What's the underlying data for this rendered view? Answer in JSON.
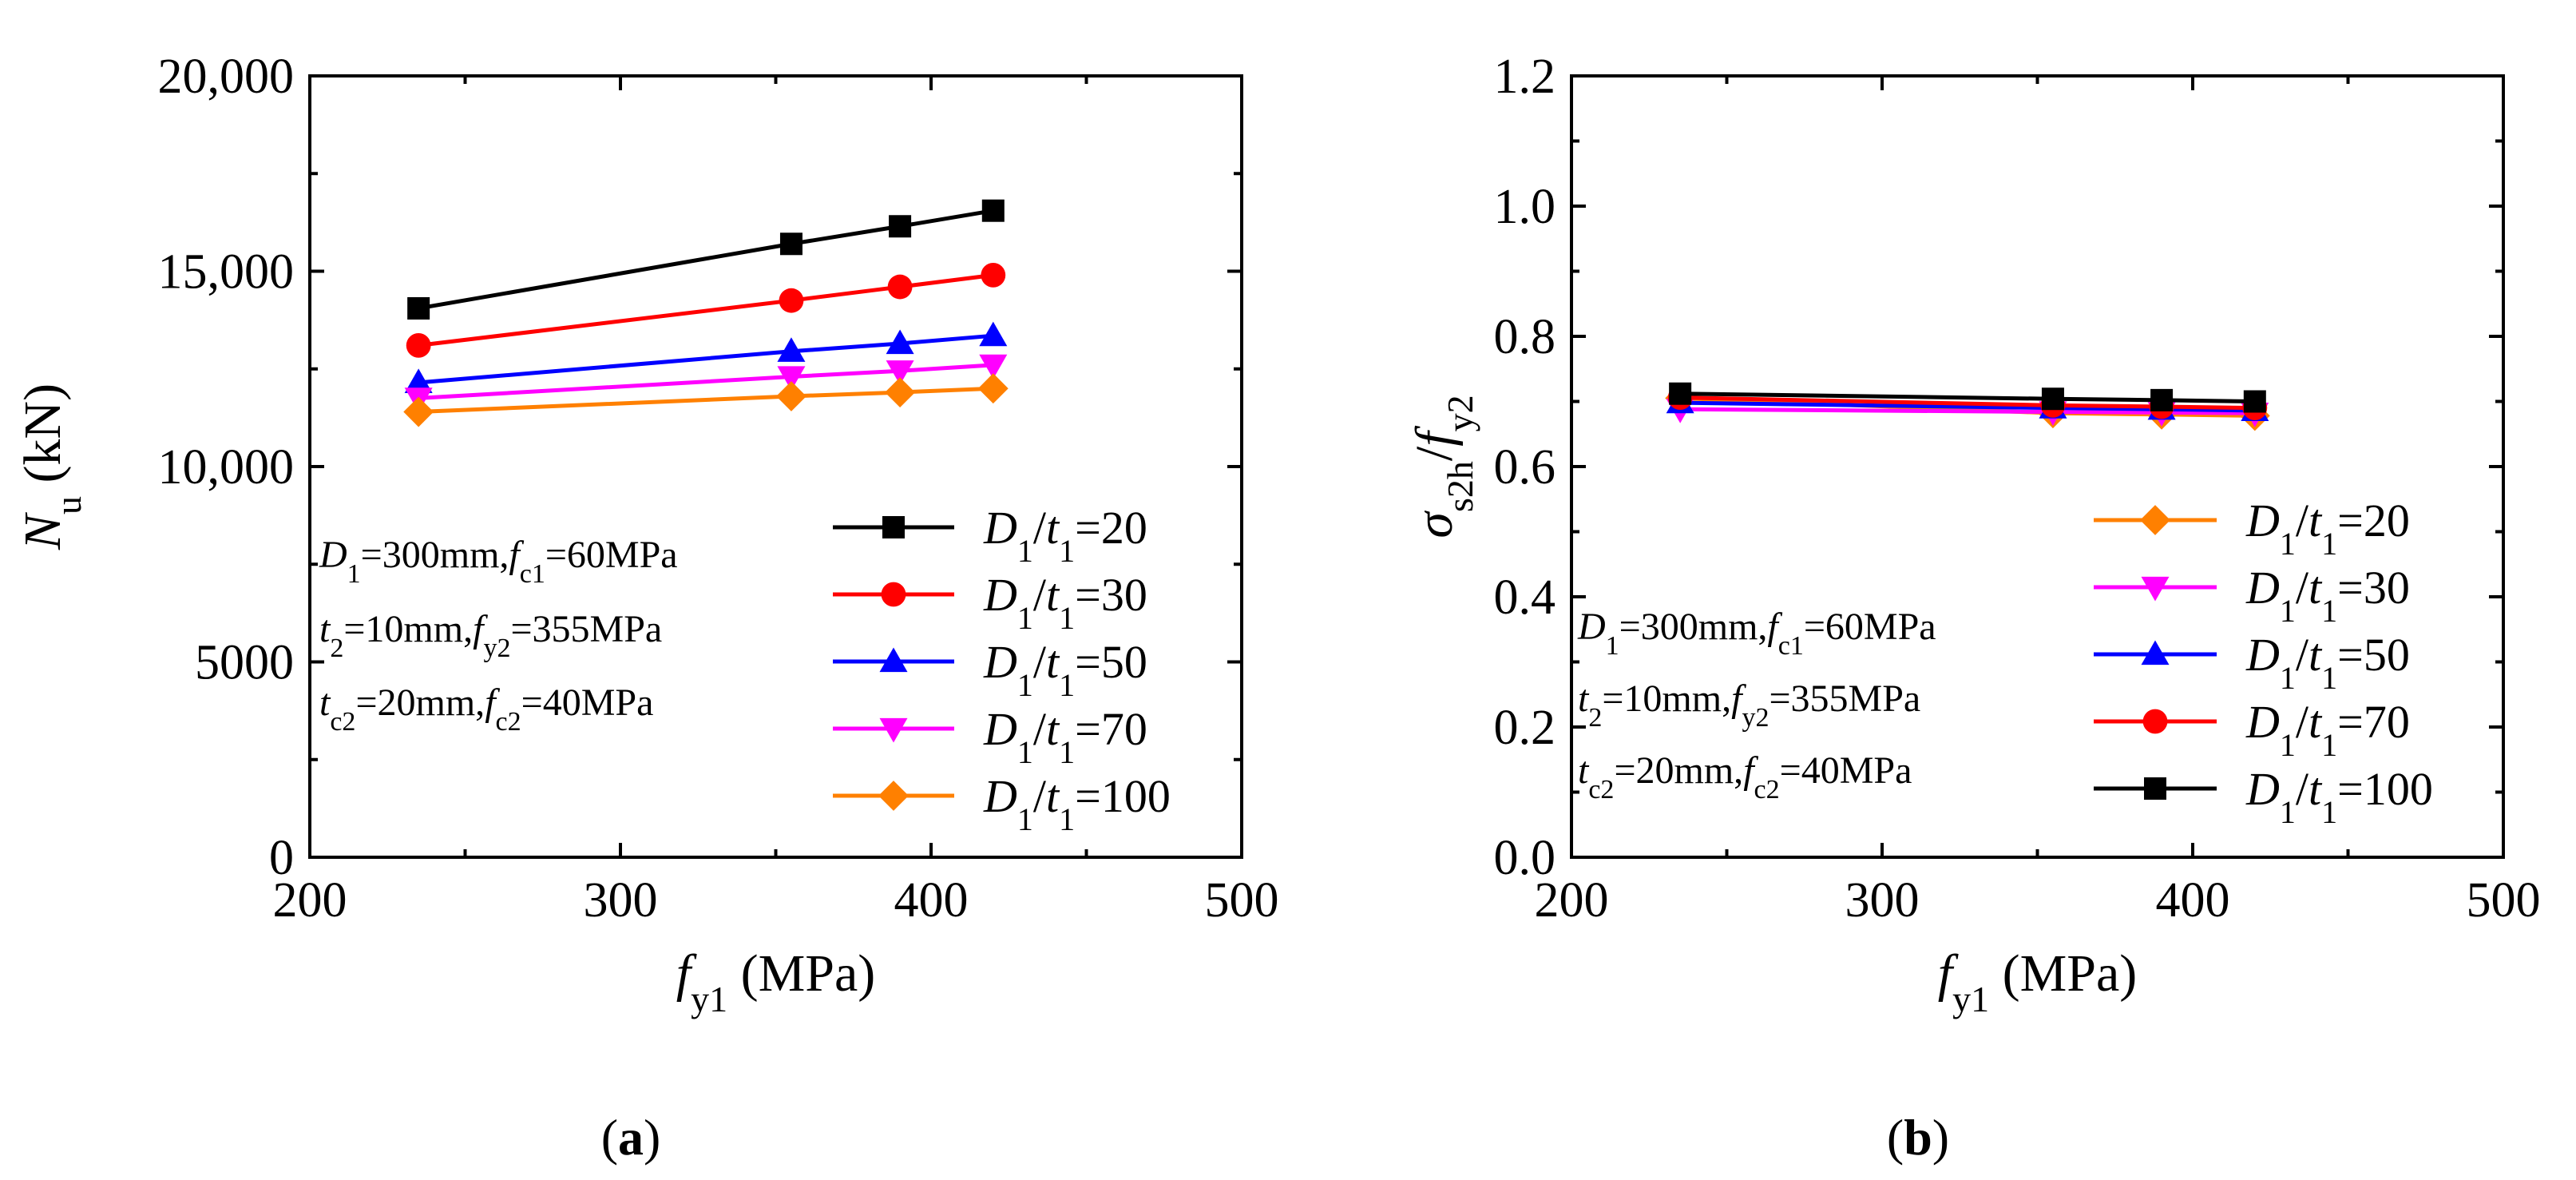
{
  "chart_data": [
    {
      "panel": "(a)",
      "panel_letter": "a",
      "type": "line",
      "x": [
        235,
        355,
        390,
        420
      ],
      "xlim": [
        200,
        500
      ],
      "ylim": [
        0,
        20000
      ],
      "xticks": [
        200,
        300,
        400,
        500
      ],
      "xtick_labels": [
        "200",
        "300",
        "400",
        "500"
      ],
      "yticks": [
        0,
        5000,
        10000,
        15000,
        20000
      ],
      "ytick_labels": [
        "0",
        "5000",
        "10,000",
        "15,000",
        "20,000"
      ],
      "xlabel": {
        "italic": "f",
        "sub": "y1",
        "unit": " (MPa)"
      },
      "ylabel": {
        "italic": "N",
        "sub": "u",
        "unit": " (kN)"
      },
      "legend_position": "lower-right",
      "annotation": [
        {
          "p1": "D",
          "s1": "1",
          "t1": "=300mm,",
          "p2": "f",
          "s2": "c1",
          "t2": "=60MPa"
        },
        {
          "p1": "t",
          "s1": "2",
          "t1": "=10mm,",
          "p2": "f",
          "s2": "y2",
          "t2": "=355MPa"
        },
        {
          "p1": "t",
          "s1": "c2",
          "t1": "=20mm,",
          "p2": "f",
          "s2": "c2",
          "t2": "=40MPa"
        }
      ],
      "series": [
        {
          "name": "D1/t1=20",
          "ratio": "=20",
          "marker": "square",
          "color": "#000000",
          "values": [
            14050,
            15700,
            16150,
            16550
          ]
        },
        {
          "name": "D1/t1=30",
          "ratio": "=30",
          "marker": "circle",
          "color": "#ff0000",
          "values": [
            13100,
            14250,
            14600,
            14900
          ]
        },
        {
          "name": "D1/t1=50",
          "ratio": "=50",
          "marker": "triangle-up",
          "color": "#0000ff",
          "values": [
            12150,
            12950,
            13150,
            13350
          ]
        },
        {
          "name": "D1/t1=70",
          "ratio": "=70",
          "marker": "triangle-down",
          "color": "#ff00ff",
          "values": [
            11750,
            12300,
            12450,
            12600
          ]
        },
        {
          "name": "D1/t1=100",
          "ratio": "=100",
          "marker": "diamond",
          "color": "#ff8000",
          "values": [
            11400,
            11800,
            11900,
            12000
          ]
        }
      ]
    },
    {
      "panel": "(b)",
      "panel_letter": "b",
      "type": "line",
      "x": [
        235,
        355,
        390,
        420
      ],
      "xlim": [
        200,
        500
      ],
      "ylim": [
        0,
        1.2
      ],
      "xticks": [
        200,
        300,
        400,
        500
      ],
      "xtick_labels": [
        "200",
        "300",
        "400",
        "500"
      ],
      "yticks": [
        0,
        0.2,
        0.4,
        0.6,
        0.8,
        1.0,
        1.2
      ],
      "ytick_labels": [
        "0.0",
        "0.2",
        "0.4",
        "0.6",
        "0.8",
        "1.0",
        "1.2"
      ],
      "xlabel": {
        "italic": "f",
        "sub": "y1",
        "unit": " (MPa)"
      },
      "ylabel": {
        "sigma": "σ",
        "sub": "s2h",
        "slash": "/",
        "italic": "f",
        "sub2": "y2"
      },
      "legend_position": "lower-right",
      "annotation": [
        {
          "p1": "D",
          "s1": "1",
          "t1": "=300mm,",
          "p2": "f",
          "s2": "c1",
          "t2": "=60MPa"
        },
        {
          "p1": "t",
          "s1": "2",
          "t1": "=10mm,",
          "p2": "f",
          "s2": "y2",
          "t2": "=355MPa"
        },
        {
          "p1": "t",
          "s1": "c2",
          "t1": "=20mm,",
          "p2": "f",
          "s2": "c2",
          "t2": "=40MPa"
        }
      ],
      "series": [
        {
          "name": "D1/t1=20",
          "ratio": "=20",
          "marker": "diamond",
          "color": "#ff8000",
          "values": [
            0.705,
            0.682,
            0.68,
            0.678
          ]
        },
        {
          "name": "D1/t1=30",
          "ratio": "=30",
          "marker": "triangle-down",
          "color": "#ff00ff",
          "values": [
            0.688,
            0.684,
            0.683,
            0.682
          ]
        },
        {
          "name": "D1/t1=50",
          "ratio": "=50",
          "marker": "triangle-up",
          "color": "#0000ff",
          "values": [
            0.698,
            0.69,
            0.688,
            0.686
          ]
        },
        {
          "name": "D1/t1=70",
          "ratio": "=70",
          "marker": "circle",
          "color": "#ff0000",
          "values": [
            0.706,
            0.694,
            0.692,
            0.69
          ]
        },
        {
          "name": "D1/t1=100",
          "ratio": "=100",
          "marker": "square",
          "color": "#000000",
          "values": [
            0.712,
            0.704,
            0.702,
            0.7
          ]
        }
      ]
    }
  ]
}
